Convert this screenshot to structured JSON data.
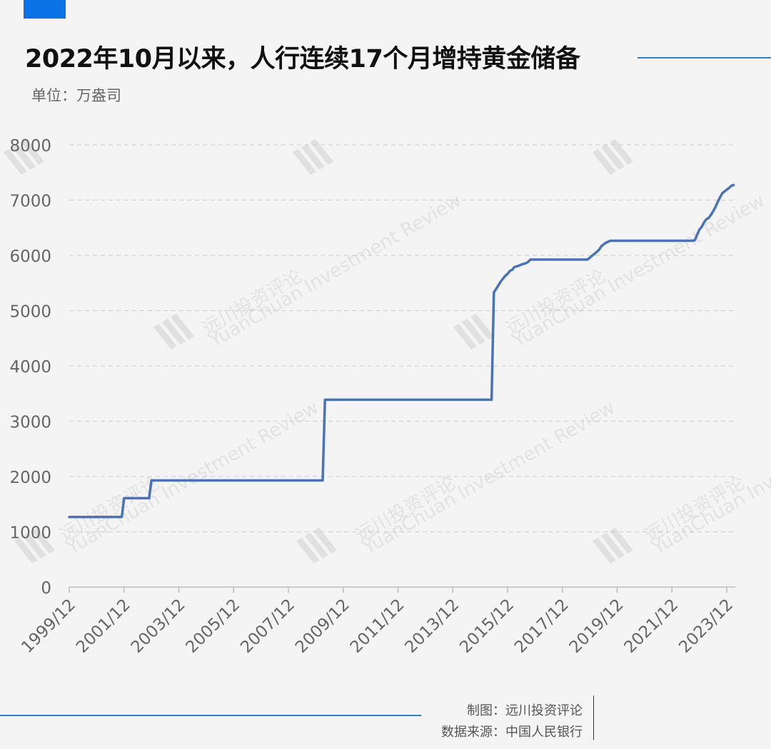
{
  "header": {
    "title": "2022年10月以来，人行连续17个月增持黄金储备",
    "unit": "单位：万盎司"
  },
  "footer": {
    "made_by": "制图：远川投资评论",
    "source": "数据来源：中国人民银行"
  },
  "watermark": {
    "name": "远川投资评论",
    "subtitle": "YuanChuan Investment Review"
  },
  "colors": {
    "line": "#4a72b8",
    "accent": "#0a72e6",
    "rule": "#2e7fc6",
    "grid": "#cccccc",
    "tick_text": "#666666"
  },
  "chart_data": {
    "type": "line",
    "title": "2022年10月以来，人行连续17个月增持黄金储备",
    "ylabel": "单位：万盎司",
    "xlabel": "",
    "ylim": [
      0,
      8000
    ],
    "xlim": [
      "1999-12",
      "2024-03"
    ],
    "grid": true,
    "yticks": [
      0,
      1000,
      2000,
      3000,
      4000,
      5000,
      6000,
      7000,
      8000
    ],
    "xticks": [
      "1999/12",
      "2001/12",
      "2003/12",
      "2005/12",
      "2007/12",
      "2009/12",
      "2011/12",
      "2013/12",
      "2015/12",
      "2017/12",
      "2019/12",
      "2021/12",
      "2023/12"
    ],
    "series": [
      {
        "x": [
          "1999-12",
          "2001-11",
          "2001-12",
          "2002-11",
          "2002-12",
          "2009-03",
          "2009-04",
          "2015-05",
          "2015-06",
          "2015-07",
          "2015-08",
          "2015-09",
          "2015-10",
          "2015-11",
          "2015-12",
          "2016-01",
          "2016-02",
          "2016-03",
          "2016-04",
          "2016-05",
          "2016-06",
          "2016-07",
          "2016-08",
          "2016-09",
          "2016-10",
          "2018-11",
          "2018-12",
          "2019-01",
          "2019-02",
          "2019-03",
          "2019-04",
          "2019-05",
          "2019-06",
          "2019-07",
          "2019-08",
          "2019-09",
          "2022-09",
          "2022-10",
          "2022-11",
          "2022-12",
          "2023-01",
          "2023-02",
          "2023-03",
          "2023-04",
          "2023-05",
          "2023-06",
          "2023-07",
          "2023-08",
          "2023-09",
          "2023-10",
          "2023-11",
          "2023-12",
          "2024-01",
          "2024-02",
          "2024-03"
        ],
        "values": [
          1267,
          1267,
          1608,
          1608,
          1929,
          1929,
          3389,
          3389,
          5332,
          5393,
          5459,
          5526,
          5578,
          5631,
          5666,
          5719,
          5738,
          5788,
          5802,
          5814,
          5833,
          5846,
          5859,
          5881,
          5924,
          5924,
          5956,
          5994,
          6026,
          6061,
          6098,
          6161,
          6196,
          6227,
          6245,
          6264,
          6264,
          6274,
          6367,
          6464,
          6512,
          6592,
          6650,
          6676,
          6727,
          6795,
          6869,
          6962,
          7046,
          7120,
          7158,
          7187,
          7219,
          7258,
          7274
        ]
      }
    ]
  }
}
